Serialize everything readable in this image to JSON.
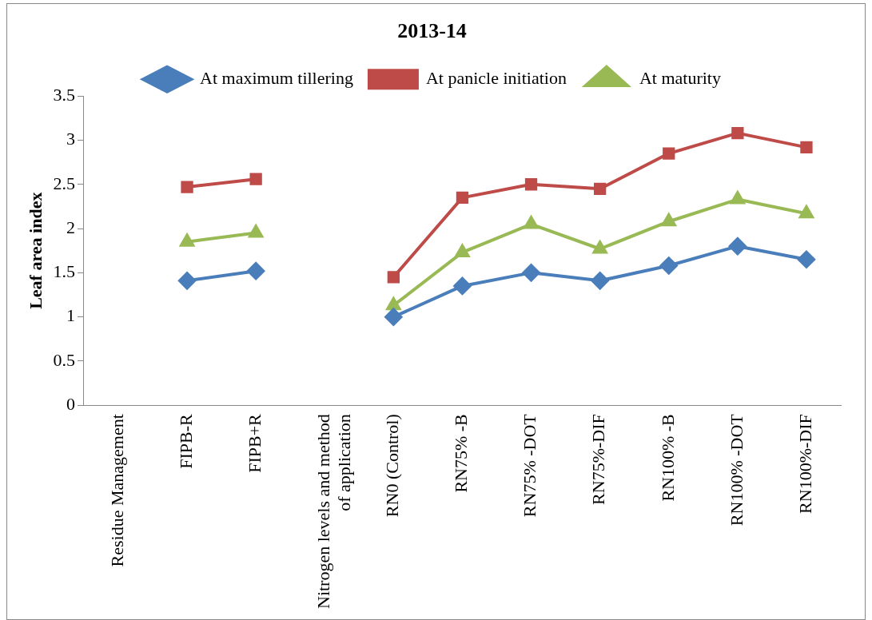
{
  "chart_data": {
    "type": "line",
    "title": "2013-14",
    "ylabel": "Leaf area index",
    "categories": [
      "Residue Management",
      "FIPB-R",
      "FIPB+R",
      "Nitrogen levels and method of application",
      "RN0 (Control)",
      "RN75% -B",
      "RN75% -DOT",
      "RN75%-DIF",
      "RN100% -B",
      "RN100% -DOT",
      "RN100%-DIF"
    ],
    "series": [
      {
        "name": "At maximum tillering",
        "color": "#4a7ebb",
        "marker": "diamond",
        "values": [
          null,
          1.41,
          1.52,
          null,
          1.0,
          1.35,
          1.5,
          1.41,
          1.58,
          1.8,
          1.65
        ]
      },
      {
        "name": "At panicle initiation",
        "color": "#be4b48",
        "marker": "square",
        "values": [
          null,
          2.47,
          2.56,
          null,
          1.45,
          2.35,
          2.5,
          2.45,
          2.85,
          3.08,
          2.92
        ]
      },
      {
        "name": "At maturity",
        "color": "#98b954",
        "marker": "triangle",
        "values": [
          null,
          1.85,
          1.95,
          null,
          1.13,
          1.73,
          2.05,
          1.77,
          2.08,
          2.33,
          2.17
        ]
      }
    ],
    "ylim": [
      0,
      3.5
    ],
    "yticks": [
      0,
      0.5,
      1,
      1.5,
      2,
      2.5,
      3,
      3.5
    ],
    "grid": false,
    "legend": "top",
    "line_style": "solid"
  }
}
